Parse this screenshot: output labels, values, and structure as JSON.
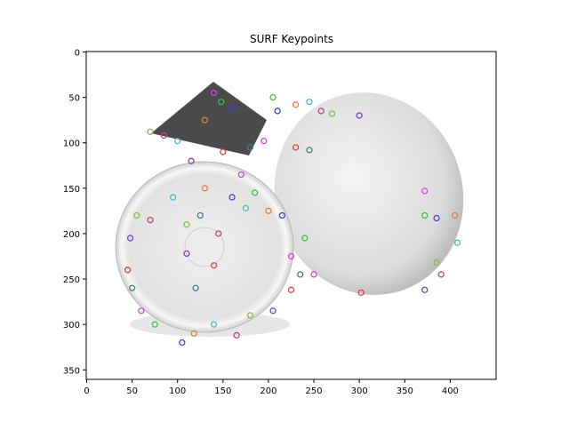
{
  "chart_data": {
    "type": "scatter",
    "title": "SURF Keypoints",
    "xlim": [
      -0.5,
      450.5
    ],
    "ylim": [
      360.5,
      -0.5
    ],
    "xticks": [
      0,
      50,
      100,
      150,
      200,
      250,
      300,
      350,
      400
    ],
    "yticks": [
      0,
      50,
      100,
      150,
      200,
      250,
      300,
      350
    ],
    "x": [
      140,
      148,
      160,
      130,
      100,
      85,
      70,
      115,
      150,
      180,
      195,
      205,
      210,
      230,
      245,
      258,
      270,
      300,
      230,
      245,
      170,
      185,
      160,
      130,
      95,
      70,
      55,
      48,
      45,
      50,
      60,
      75,
      105,
      118,
      140,
      165,
      180,
      205,
      225,
      235,
      250,
      240,
      215,
      200,
      175,
      145,
      110,
      110,
      140,
      120,
      372,
      372,
      385,
      405,
      408,
      390,
      385,
      372,
      302,
      125,
      225
    ],
    "values": [
      45,
      55,
      62,
      75,
      98,
      92,
      88,
      120,
      110,
      105,
      98,
      50,
      65,
      58,
      55,
      65,
      68,
      70,
      105,
      108,
      135,
      155,
      160,
      150,
      160,
      185,
      180,
      205,
      240,
      260,
      285,
      300,
      320,
      310,
      300,
      312,
      290,
      285,
      262,
      245,
      245,
      205,
      180,
      175,
      172,
      200,
      190,
      222,
      235,
      260,
      153,
      180,
      183,
      180,
      210,
      245,
      232,
      262,
      265,
      180,
      225
    ],
    "palette": [
      "#e040e0",
      "#40c040",
      "#4040e0",
      "#e08040",
      "#40c0c0",
      "#c04080",
      "#80c040",
      "#8040c0",
      "#e04040",
      "#408080"
    ]
  }
}
